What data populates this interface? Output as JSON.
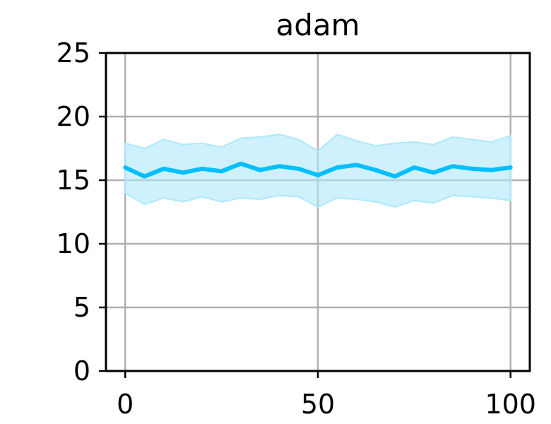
{
  "chart_data": {
    "type": "line",
    "title": "adam",
    "xlabel": "",
    "ylabel": "",
    "xlim": [
      -5,
      105
    ],
    "ylim": [
      0,
      25
    ],
    "x_ticks": [
      0,
      50,
      100
    ],
    "y_ticks": [
      0,
      5,
      10,
      15,
      20,
      25
    ],
    "grid": true,
    "legend": "none",
    "series": [
      {
        "color": "#00bfff",
        "band_color": "#aee8fb",
        "x": [
          0,
          5,
          10,
          15,
          20,
          25,
          30,
          35,
          40,
          45,
          50,
          55,
          60,
          65,
          70,
          75,
          80,
          85,
          90,
          95,
          100
        ],
        "mean": [
          16.0,
          15.3,
          15.9,
          15.6,
          15.9,
          15.7,
          16.3,
          15.8,
          16.1,
          15.9,
          15.4,
          16.0,
          16.2,
          15.8,
          15.3,
          16.0,
          15.6,
          16.1,
          15.9,
          15.8,
          16.0
        ],
        "upper": [
          17.9,
          17.5,
          18.2,
          17.8,
          17.9,
          17.6,
          18.3,
          18.4,
          18.6,
          18.2,
          17.3,
          18.6,
          18.1,
          17.7,
          17.9,
          18.0,
          17.8,
          18.4,
          18.2,
          18.0,
          18.5
        ],
        "lower": [
          14.0,
          13.1,
          13.6,
          13.3,
          13.7,
          13.3,
          13.6,
          13.5,
          13.8,
          13.7,
          12.9,
          13.6,
          13.5,
          13.3,
          12.9,
          13.4,
          13.2,
          13.8,
          13.7,
          13.6,
          13.4
        ]
      }
    ]
  }
}
